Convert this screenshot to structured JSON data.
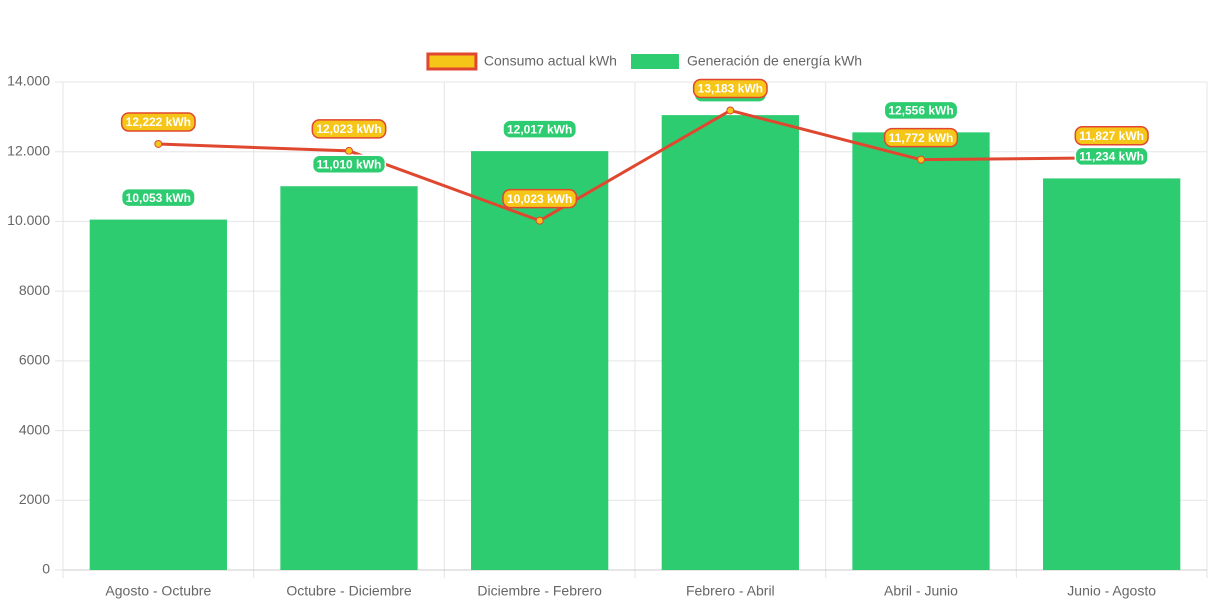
{
  "chart_data": {
    "type": "bar",
    "categories": [
      "Agosto - Octubre",
      "Octubre - Diciembre",
      "Diciembre - Febrero",
      "Febrero - Abril",
      "Abril - Junio",
      "Junio - Agosto"
    ],
    "series": [
      {
        "name": "Consumo actual kWh",
        "type": "line",
        "color": "#e0472f",
        "point_color": "#f5c518",
        "values": [
          12222,
          12023,
          10023,
          13183,
          11772,
          11827
        ],
        "value_labels": [
          "12,222 kWh",
          "12,023 kWh",
          "10,023 kWh",
          "13,183 kWh",
          "11,772 kWh",
          "11,827 kWh"
        ]
      },
      {
        "name": "Generación de energía kWh",
        "type": "bar",
        "color": "#2ecc71",
        "values": [
          10053,
          11010,
          12017,
          13050,
          12556,
          11234
        ],
        "value_labels": [
          "10,053 kWh",
          "11,010 kWh",
          "12,017 kWh",
          null,
          "12,556 kWh",
          "11,234 kWh"
        ]
      }
    ],
    "ylim": [
      0,
      14000
    ],
    "yticks": [
      0,
      2000,
      4000,
      6000,
      8000,
      {
        "value": 10000,
        "label": "10.000"
      },
      {
        "value": 12000,
        "label": "12.000"
      },
      {
        "value": 14000,
        "label": "14.000"
      }
    ],
    "grid": true,
    "legend": "top"
  }
}
